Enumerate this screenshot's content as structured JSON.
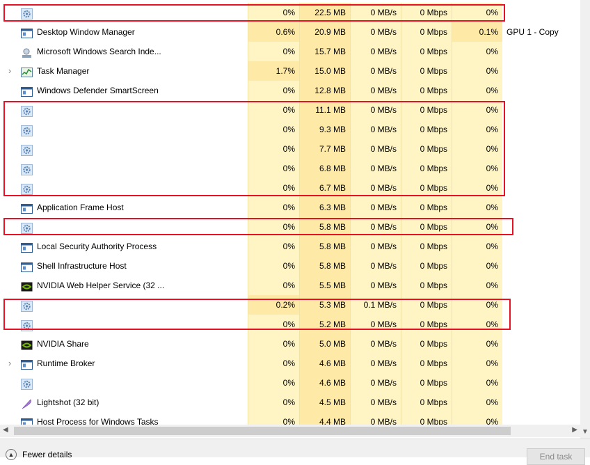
{
  "rows": [
    {
      "name": "",
      "icon": "gear-icon",
      "expand": false,
      "cpu": "0%",
      "mem": "22.5 MB",
      "disk": "0 MB/s",
      "net": "0 Mbps",
      "gpu": "0%",
      "engine": "",
      "cpu_level": "low"
    },
    {
      "name": "Desktop Window Manager",
      "icon": "window-icon",
      "expand": false,
      "cpu": "0.6%",
      "mem": "20.9 MB",
      "disk": "0 MB/s",
      "net": "0 Mbps",
      "gpu": "0.1%",
      "engine": "GPU 1 - Copy",
      "cpu_level": "mid"
    },
    {
      "name": "Microsoft Windows Search Inde...",
      "icon": "search-indexer-icon",
      "expand": false,
      "cpu": "0%",
      "mem": "15.7 MB",
      "disk": "0 MB/s",
      "net": "0 Mbps",
      "gpu": "0%",
      "engine": "",
      "cpu_level": "low"
    },
    {
      "name": "Task Manager",
      "icon": "task-manager-icon",
      "expand": true,
      "cpu": "1.7%",
      "mem": "15.0 MB",
      "disk": "0 MB/s",
      "net": "0 Mbps",
      "gpu": "0%",
      "engine": "",
      "cpu_level": "mid"
    },
    {
      "name": "Windows Defender SmartScreen",
      "icon": "window-icon",
      "expand": false,
      "cpu": "0%",
      "mem": "12.8 MB",
      "disk": "0 MB/s",
      "net": "0 Mbps",
      "gpu": "0%",
      "engine": "",
      "cpu_level": "low"
    },
    {
      "name": "",
      "icon": "gear-icon",
      "expand": false,
      "cpu": "0%",
      "mem": "11.1 MB",
      "disk": "0 MB/s",
      "net": "0 Mbps",
      "gpu": "0%",
      "engine": "",
      "cpu_level": "low"
    },
    {
      "name": "",
      "icon": "gear-icon",
      "expand": false,
      "cpu": "0%",
      "mem": "9.3 MB",
      "disk": "0 MB/s",
      "net": "0 Mbps",
      "gpu": "0%",
      "engine": "",
      "cpu_level": "low"
    },
    {
      "name": "",
      "icon": "gear-icon",
      "expand": false,
      "cpu": "0%",
      "mem": "7.7 MB",
      "disk": "0 MB/s",
      "net": "0 Mbps",
      "gpu": "0%",
      "engine": "",
      "cpu_level": "low"
    },
    {
      "name": "",
      "icon": "gear-icon",
      "expand": false,
      "cpu": "0%",
      "mem": "6.8 MB",
      "disk": "0 MB/s",
      "net": "0 Mbps",
      "gpu": "0%",
      "engine": "",
      "cpu_level": "low"
    },
    {
      "name": "",
      "icon": "gear-icon",
      "expand": false,
      "cpu": "0%",
      "mem": "6.7 MB",
      "disk": "0 MB/s",
      "net": "0 Mbps",
      "gpu": "0%",
      "engine": "",
      "cpu_level": "low"
    },
    {
      "name": "Application Frame Host",
      "icon": "window-icon",
      "expand": false,
      "cpu": "0%",
      "mem": "6.3 MB",
      "disk": "0 MB/s",
      "net": "0 Mbps",
      "gpu": "0%",
      "engine": "",
      "cpu_level": "low"
    },
    {
      "name": "",
      "icon": "gear-icon",
      "expand": false,
      "cpu": "0%",
      "mem": "5.8 MB",
      "disk": "0 MB/s",
      "net": "0 Mbps",
      "gpu": "0%",
      "engine": "",
      "cpu_level": "low"
    },
    {
      "name": "Local Security Authority Process",
      "icon": "window-icon",
      "expand": false,
      "cpu": "0%",
      "mem": "5.8 MB",
      "disk": "0 MB/s",
      "net": "0 Mbps",
      "gpu": "0%",
      "engine": "",
      "cpu_level": "low"
    },
    {
      "name": "Shell Infrastructure Host",
      "icon": "window-icon",
      "expand": false,
      "cpu": "0%",
      "mem": "5.8 MB",
      "disk": "0 MB/s",
      "net": "0 Mbps",
      "gpu": "0%",
      "engine": "",
      "cpu_level": "low"
    },
    {
      "name": "NVIDIA Web Helper Service (32 ...",
      "icon": "nvidia-icon",
      "expand": false,
      "cpu": "0%",
      "mem": "5.5 MB",
      "disk": "0 MB/s",
      "net": "0 Mbps",
      "gpu": "0%",
      "engine": "",
      "cpu_level": "low"
    },
    {
      "name": "",
      "icon": "gear-icon",
      "expand": false,
      "cpu": "0.2%",
      "mem": "5.3 MB",
      "disk": "0.1 MB/s",
      "net": "0 Mbps",
      "gpu": "0%",
      "engine": "",
      "cpu_level": "mid"
    },
    {
      "name": "",
      "icon": "gear-icon",
      "expand": false,
      "cpu": "0%",
      "mem": "5.2 MB",
      "disk": "0 MB/s",
      "net": "0 Mbps",
      "gpu": "0%",
      "engine": "",
      "cpu_level": "low"
    },
    {
      "name": "NVIDIA Share",
      "icon": "nvidia-icon",
      "expand": false,
      "cpu": "0%",
      "mem": "5.0 MB",
      "disk": "0 MB/s",
      "net": "0 Mbps",
      "gpu": "0%",
      "engine": "",
      "cpu_level": "low"
    },
    {
      "name": "Runtime Broker",
      "icon": "window-icon",
      "expand": true,
      "cpu": "0%",
      "mem": "4.6 MB",
      "disk": "0 MB/s",
      "net": "0 Mbps",
      "gpu": "0%",
      "engine": "",
      "cpu_level": "low"
    },
    {
      "name": "",
      "icon": "gear-icon",
      "expand": false,
      "cpu": "0%",
      "mem": "4.6 MB",
      "disk": "0 MB/s",
      "net": "0 Mbps",
      "gpu": "0%",
      "engine": "",
      "cpu_level": "low"
    },
    {
      "name": "Lightshot (32 bit)",
      "icon": "feather-icon",
      "expand": false,
      "cpu": "0%",
      "mem": "4.5 MB",
      "disk": "0 MB/s",
      "net": "0 Mbps",
      "gpu": "0%",
      "engine": "",
      "cpu_level": "low"
    },
    {
      "name": "Host Process for Windows Tasks",
      "icon": "window-icon",
      "expand": false,
      "cpu": "0%",
      "mem": "4.4 MB",
      "disk": "0 MB/s",
      "net": "0 Mbps",
      "gpu": "0%",
      "engine": "",
      "cpu_level": "low"
    }
  ],
  "footer": {
    "fewer_details_label": "Fewer details",
    "end_task_label": "End task"
  },
  "colors": {
    "highlight": "#e81123",
    "heat_low": "#fff4c4",
    "heat_mid": "#ffe9a7"
  }
}
